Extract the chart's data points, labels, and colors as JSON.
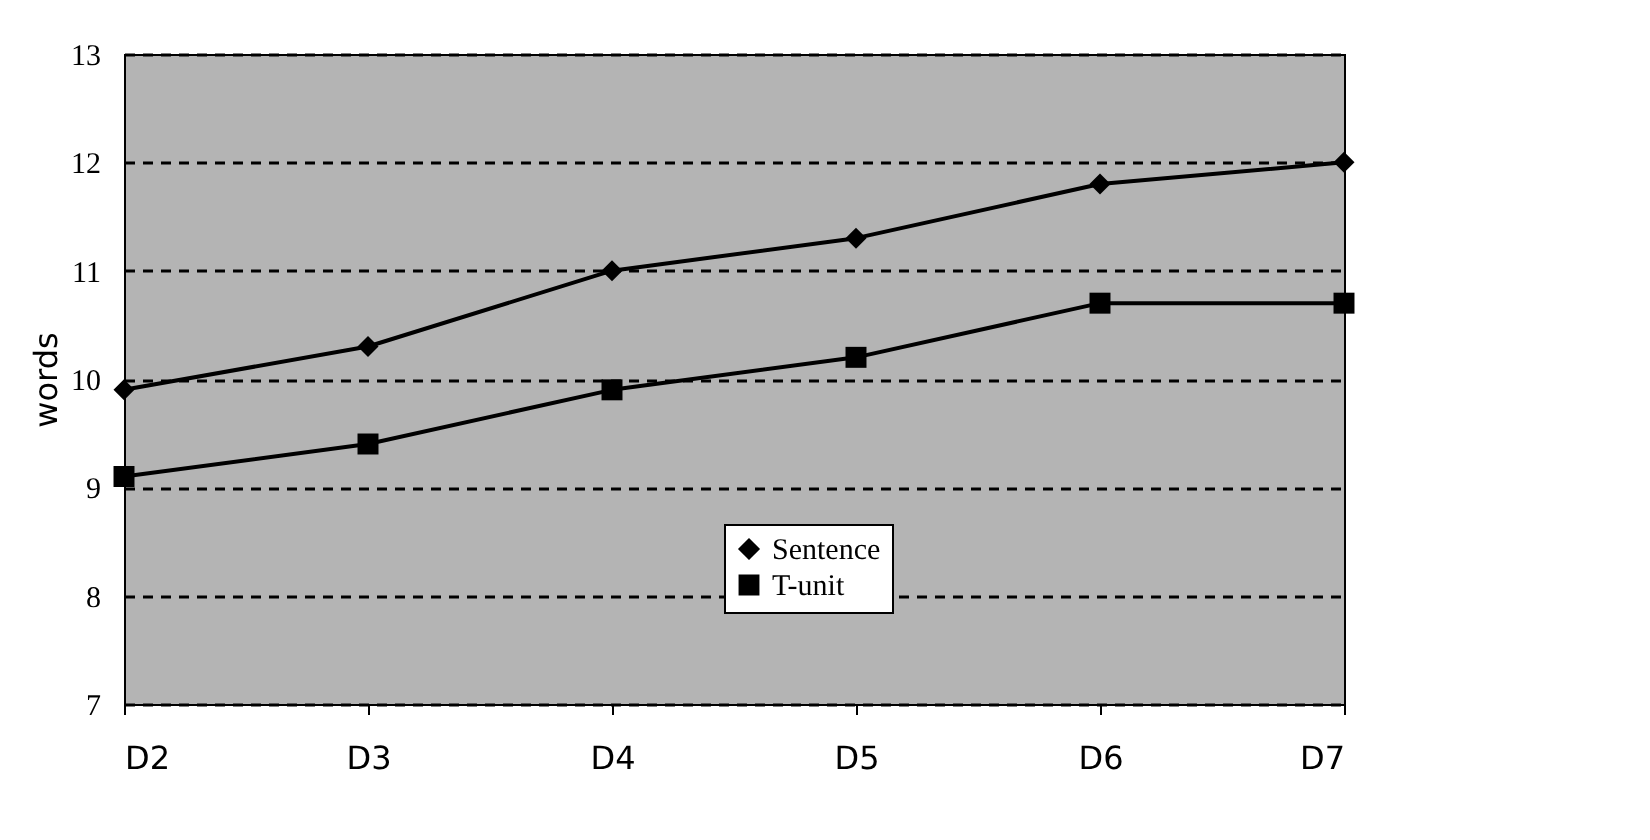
{
  "chart_data": {
    "type": "line",
    "ylabel": "words",
    "categories": [
      "D2",
      "D3",
      "D4",
      "D5",
      "D6",
      "D7"
    ],
    "series": [
      {
        "name": "Sentence",
        "color": "#000000",
        "marker": "diamond",
        "values": [
          9.9,
          10.3,
          11.0,
          11.3,
          11.8,
          12.0
        ]
      },
      {
        "name": "T-unit",
        "color": "#000000",
        "marker": "square",
        "values": [
          9.1,
          9.4,
          9.9,
          10.2,
          10.7,
          10.7
        ]
      }
    ],
    "ylim": [
      7,
      13
    ],
    "yticks": [
      7,
      8,
      9,
      10,
      11,
      12,
      13
    ],
    "grid": "y",
    "legend": "bottom",
    "line_style": "solid"
  }
}
